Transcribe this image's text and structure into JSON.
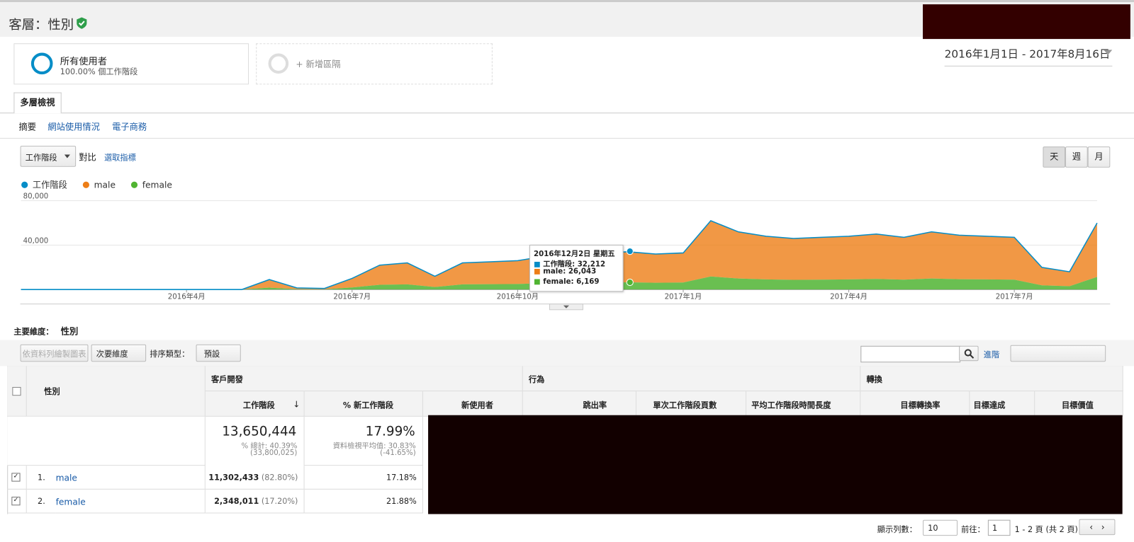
{
  "header": {
    "title": "客層：性別",
    "date_range": "2016年1月1日 - 2017年8月16日"
  },
  "segments": [
    {
      "name": "所有使用者",
      "detail": "100.00% 個工作階段"
    },
    {
      "name": "+ 新增區隔"
    }
  ],
  "tab": "多層檢視",
  "subnav": [
    "摘要",
    "網站使用情況",
    "電子商務"
  ],
  "controls": {
    "metric": "工作階段",
    "vs": "對比",
    "choose": "選取指標",
    "periods": [
      "天",
      "週",
      "月"
    ]
  },
  "chart_data": {
    "type": "area",
    "categories": [
      null,
      null,
      null,
      null,
      null,
      null,
      "2016年4月",
      null,
      null,
      null,
      null,
      null,
      "2016年7月",
      null,
      null,
      null,
      null,
      null,
      "2016年10月",
      null,
      null,
      null,
      null,
      null,
      "2017年1月",
      null,
      null,
      null,
      null,
      null,
      "2017年4月",
      null,
      null,
      null,
      null,
      null,
      "2017年7月",
      null,
      null,
      null
    ],
    "series": [
      {
        "name": "工作階段",
        "color": "#058dc7",
        "values": [
          0,
          0,
          0,
          0,
          0,
          0,
          0,
          0,
          0,
          9000,
          1500,
          1000,
          10000,
          22000,
          24000,
          12000,
          24000,
          25000,
          26000,
          30000,
          32000,
          33000,
          34000,
          32000,
          33000,
          62000,
          52000,
          48000,
          46000,
          47000,
          48000,
          50000,
          47000,
          52000,
          49000,
          48000,
          47000,
          20000,
          16000,
          60000
        ]
      },
      {
        "name": "male",
        "color": "#ed7e17",
        "values": [
          0,
          0,
          0,
          0,
          0,
          0,
          0,
          0,
          0,
          7300,
          1200,
          800,
          8100,
          17800,
          19400,
          9700,
          19400,
          20200,
          21000,
          24300,
          25900,
          26700,
          27500,
          25900,
          26700,
          50200,
          42100,
          38900,
          37300,
          38100,
          38900,
          40500,
          38100,
          42100,
          39700,
          38900,
          38100,
          16200,
          13000,
          48600
        ]
      },
      {
        "name": "female",
        "color": "#50b432",
        "values": [
          0,
          0,
          0,
          0,
          0,
          0,
          0,
          0,
          0,
          1700,
          300,
          200,
          1900,
          4200,
          4600,
          2300,
          4600,
          4800,
          5000,
          5700,
          6100,
          6300,
          6500,
          6100,
          6300,
          11800,
          9900,
          9100,
          8700,
          8900,
          9100,
          9500,
          8900,
          9900,
          9300,
          9100,
          8900,
          3800,
          3000,
          11400
        ]
      }
    ],
    "ylim": [
      0,
      80000
    ],
    "yticks": [
      {
        "value": 40000,
        "label": "40,000"
      },
      {
        "value": 80000,
        "label": "80,000"
      }
    ],
    "grid": true,
    "legend": "top-left",
    "tooltip": {
      "date": "2016年12月2日 星期五",
      "rows": [
        "工作階段:  32,212",
        "male:  26,043",
        "female:  6,169"
      ]
    }
  },
  "dimension": {
    "label": "主要維度：",
    "value": "性別"
  },
  "toolbar": {
    "plot": "依資料列繪製圖表",
    "secondary": "次要維度",
    "sort_label": "排序類型：",
    "sort": "預設",
    "advanced": "進階"
  },
  "table": {
    "groups": [
      "客戶開發",
      "行為",
      "轉換"
    ],
    "dim_header": "性別",
    "columns": [
      "工作階段",
      "% 新工作階段",
      "新使用者",
      "跳出率",
      "單次工作階段頁數",
      "平均工作階段時間長度",
      "目標轉換率",
      "目標達成",
      "目標價值"
    ],
    "totals": {
      "sessions": "13,650,444",
      "sessions_note1": "% 總計: 40.39%",
      "sessions_note2": "(33,800,025)",
      "new": "17.99%",
      "new_note1": "資料檢視平均值: 30.83%",
      "new_note2": "(-41.65%)"
    },
    "rows": [
      {
        "index": "1.",
        "name": "male",
        "sessions": "11,302,433",
        "share": "(82.80%)",
        "new": "17.18%"
      },
      {
        "index": "2.",
        "name": "female",
        "sessions": "2,348,011",
        "share": "(17.20%)",
        "new": "21.88%"
      }
    ]
  },
  "pager": {
    "rows_label": "顯示列數：",
    "rows": "10",
    "goto": "前往：",
    "page": "1",
    "range": "1 - 2 頁 (共 2 頁)"
  }
}
